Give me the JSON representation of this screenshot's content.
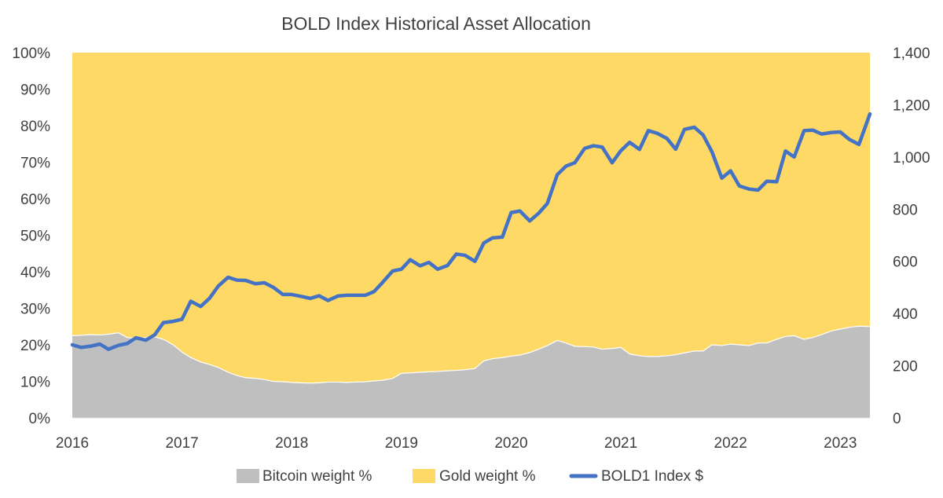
{
  "chart_data": {
    "type": "area",
    "title": "BOLD Index Historical Asset Allocation",
    "x_ticks": [
      "2016",
      "2017",
      "2018",
      "2019",
      "2020",
      "2021",
      "2022",
      "2023"
    ],
    "x_range": [
      2016.0,
      2023.27
    ],
    "y_left_ticks": [
      "0%",
      "10%",
      "20%",
      "30%",
      "40%",
      "50%",
      "60%",
      "70%",
      "80%",
      "90%",
      "100%"
    ],
    "y_left_range": [
      0,
      100
    ],
    "y_right_ticks": [
      "0",
      "200",
      "400",
      "600",
      "800",
      "1,000",
      "1,200",
      "1,400"
    ],
    "y_right_range": [
      0,
      1400
    ],
    "legend_position": "bottom",
    "colors": {
      "bitcoin": "#bfbfbf",
      "gold": "#ffd966",
      "bold1": "#4472c4"
    },
    "series": [
      {
        "name": "Bitcoin weight %",
        "kind": "stacked-area",
        "axis": "left",
        "x": [
          2016.0,
          2016.08,
          2016.17,
          2016.25,
          2016.33,
          2016.42,
          2016.5,
          2016.58,
          2016.67,
          2016.75,
          2016.83,
          2016.92,
          2017.0,
          2017.08,
          2017.17,
          2017.25,
          2017.33,
          2017.42,
          2017.5,
          2017.58,
          2017.67,
          2017.75,
          2017.83,
          2017.92,
          2018.0,
          2018.08,
          2018.17,
          2018.25,
          2018.33,
          2018.42,
          2018.5,
          2018.58,
          2018.67,
          2018.75,
          2018.83,
          2018.92,
          2019.0,
          2019.08,
          2019.17,
          2019.25,
          2019.33,
          2019.42,
          2019.5,
          2019.58,
          2019.67,
          2019.75,
          2019.83,
          2019.92,
          2020.0,
          2020.08,
          2020.17,
          2020.25,
          2020.33,
          2020.42,
          2020.5,
          2020.58,
          2020.67,
          2020.75,
          2020.83,
          2020.92,
          2021.0,
          2021.08,
          2021.17,
          2021.25,
          2021.33,
          2021.42,
          2021.5,
          2021.58,
          2021.67,
          2021.75,
          2021.83,
          2021.92,
          2022.0,
          2022.08,
          2022.17,
          2022.25,
          2022.33,
          2022.42,
          2022.5,
          2022.58,
          2022.67,
          2022.75,
          2022.83,
          2022.92,
          2023.0,
          2023.08,
          2023.17,
          2023.27
        ],
        "values": [
          22.5,
          22.6,
          22.8,
          22.7,
          22.9,
          23.3,
          22.0,
          21.8,
          22.0,
          22.2,
          21.5,
          20.0,
          18.0,
          16.5,
          15.3,
          14.6,
          13.8,
          12.5,
          11.6,
          11.0,
          10.8,
          10.5,
          10.0,
          9.9,
          9.7,
          9.6,
          9.5,
          9.6,
          9.8,
          9.8,
          9.7,
          9.8,
          9.9,
          10.1,
          10.3,
          10.8,
          12.2,
          12.3,
          12.5,
          12.6,
          12.7,
          12.9,
          13.0,
          13.2,
          13.5,
          15.6,
          16.2,
          16.5,
          16.9,
          17.2,
          17.9,
          18.8,
          19.8,
          21.2,
          20.5,
          19.6,
          19.5,
          19.4,
          18.8,
          19.0,
          19.3,
          17.5,
          17.0,
          16.8,
          16.8,
          17.0,
          17.3,
          17.8,
          18.3,
          18.3,
          20.0,
          19.8,
          20.2,
          20.0,
          19.8,
          20.5,
          20.5,
          21.5,
          22.3,
          22.5,
          21.5,
          22.0,
          22.8,
          23.8,
          24.3,
          24.8,
          25.1,
          25.0
        ]
      },
      {
        "name": "Gold weight %",
        "kind": "stacked-area",
        "axis": "left",
        "stack_top": 100
      },
      {
        "name": "BOLD1 Index $",
        "kind": "line",
        "axis": "right",
        "x": [
          2016.0,
          2016.08,
          2016.17,
          2016.25,
          2016.33,
          2016.42,
          2016.5,
          2016.58,
          2016.67,
          2016.75,
          2016.83,
          2016.92,
          2017.0,
          2017.08,
          2017.17,
          2017.25,
          2017.33,
          2017.42,
          2017.5,
          2017.58,
          2017.67,
          2017.75,
          2017.83,
          2017.92,
          2018.0,
          2018.08,
          2018.17,
          2018.25,
          2018.33,
          2018.42,
          2018.5,
          2018.58,
          2018.67,
          2018.75,
          2018.83,
          2018.92,
          2019.0,
          2019.08,
          2019.17,
          2019.25,
          2019.33,
          2019.42,
          2019.5,
          2019.58,
          2019.67,
          2019.75,
          2019.83,
          2019.92,
          2020.0,
          2020.08,
          2020.17,
          2020.25,
          2020.33,
          2020.42,
          2020.5,
          2020.58,
          2020.67,
          2020.75,
          2020.83,
          2020.92,
          2021.0,
          2021.08,
          2021.17,
          2021.25,
          2021.33,
          2021.42,
          2021.5,
          2021.58,
          2021.67,
          2021.75,
          2021.83,
          2021.92,
          2022.0,
          2022.08,
          2022.17,
          2022.25,
          2022.33,
          2022.42,
          2022.5,
          2022.58,
          2022.67,
          2022.75,
          2022.83,
          2022.92,
          2023.0,
          2023.08,
          2023.17,
          2023.27
        ],
        "values": [
          280,
          270,
          275,
          283,
          263,
          278,
          285,
          307,
          298,
          318,
          365,
          370,
          378,
          447,
          427,
          458,
          505,
          539,
          528,
          527,
          514,
          518,
          501,
          473,
          473,
          466,
          458,
          468,
          450,
          467,
          470,
          470,
          470,
          484,
          520,
          563,
          570,
          606,
          583,
          596,
          570,
          584,
          628,
          623,
          600,
          670,
          690,
          693,
          787,
          793,
          755,
          784,
          822,
          932,
          965,
          978,
          1033,
          1043,
          1038,
          978,
          1024,
          1056,
          1029,
          1101,
          1091,
          1071,
          1030,
          1106,
          1114,
          1084,
          1020,
          919,
          947,
          889,
          877,
          873,
          907,
          905,
          1023,
          1000,
          1101,
          1103,
          1088,
          1094,
          1096,
          1068,
          1048,
          1165
        ]
      }
    ]
  }
}
